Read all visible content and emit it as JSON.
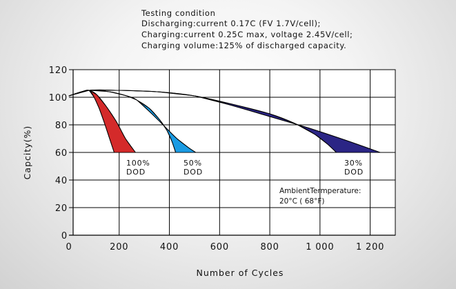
{
  "testing_condition": {
    "heading": "Testing condition",
    "lines": [
      "Discharging:current 0.17C (FV 1.7V/cell);",
      "Charging:current 0.25C max, voltage 2.45V/cell;",
      "Charging volume:125% of discharged capacity."
    ]
  },
  "chart_data": {
    "type": "area",
    "title": "",
    "xlabel": "Number of Cycles",
    "ylabel": "Capcity(%)",
    "xlim": [
      0,
      1300
    ],
    "ylim": [
      0,
      120
    ],
    "x_ticks": [
      0,
      200,
      400,
      600,
      800,
      1000,
      1200
    ],
    "x_tick_labels": [
      "0",
      "200",
      "400",
      "600",
      "800",
      "1 000",
      "1 200"
    ],
    "y_ticks": [
      0,
      20,
      40,
      60,
      80,
      100,
      120
    ],
    "y_tick_labels": [
      "0",
      "20",
      "40",
      "60",
      "80",
      "100",
      "120"
    ],
    "grid": true,
    "series": [
      {
        "name": "100% DOD",
        "label_lines": [
          "100%",
          "DOD"
        ],
        "color": "#d42a2a",
        "upper": [
          [
            0,
            101
          ],
          [
            50,
            104
          ],
          [
            80,
            105
          ],
          [
            110,
            102
          ],
          [
            150,
            93
          ],
          [
            190,
            82
          ],
          [
            225,
            70
          ],
          [
            265,
            60
          ]
        ],
        "lower": [
          [
            0,
            101
          ],
          [
            50,
            104
          ],
          [
            80,
            105
          ],
          [
            100,
            100
          ],
          [
            120,
            92
          ],
          [
            140,
            82
          ],
          [
            160,
            71
          ],
          [
            180,
            60
          ]
        ]
      },
      {
        "name": "50% DOD",
        "label_lines": [
          "50%",
          "DOD"
        ],
        "color": "#1a9be3",
        "upper": [
          [
            0,
            101
          ],
          [
            80,
            105
          ],
          [
            160,
            104
          ],
          [
            230,
            101
          ],
          [
            270,
            98
          ],
          [
            330,
            88
          ],
          [
            380,
            79
          ],
          [
            430,
            70
          ],
          [
            480,
            63
          ],
          [
            505,
            60
          ]
        ],
        "lower": [
          [
            0,
            101
          ],
          [
            80,
            105
          ],
          [
            160,
            104
          ],
          [
            230,
            101
          ],
          [
            270,
            98
          ],
          [
            320,
            92
          ],
          [
            360,
            84
          ],
          [
            390,
            76
          ],
          [
            410,
            68
          ],
          [
            425,
            60
          ]
        ]
      },
      {
        "name": "30% DOD",
        "label_lines": [
          "30%",
          "DOD"
        ],
        "color": "#2b2585",
        "upper": [
          [
            0,
            101
          ],
          [
            80,
            105
          ],
          [
            200,
            105
          ],
          [
            350,
            104
          ],
          [
            500,
            101
          ],
          [
            650,
            94
          ],
          [
            800,
            86
          ],
          [
            950,
            78
          ],
          [
            1100,
            69
          ],
          [
            1240,
            60
          ]
        ],
        "lower": [
          [
            0,
            101
          ],
          [
            80,
            105
          ],
          [
            200,
            105
          ],
          [
            350,
            104
          ],
          [
            500,
            101
          ],
          [
            650,
            95
          ],
          [
            800,
            88
          ],
          [
            900,
            81
          ],
          [
            980,
            73
          ],
          [
            1030,
            66
          ],
          [
            1065,
            60
          ]
        ]
      }
    ],
    "annotation": {
      "lines": [
        "AmbientTermperature:",
        "20°C ( 68°F)"
      ]
    }
  }
}
